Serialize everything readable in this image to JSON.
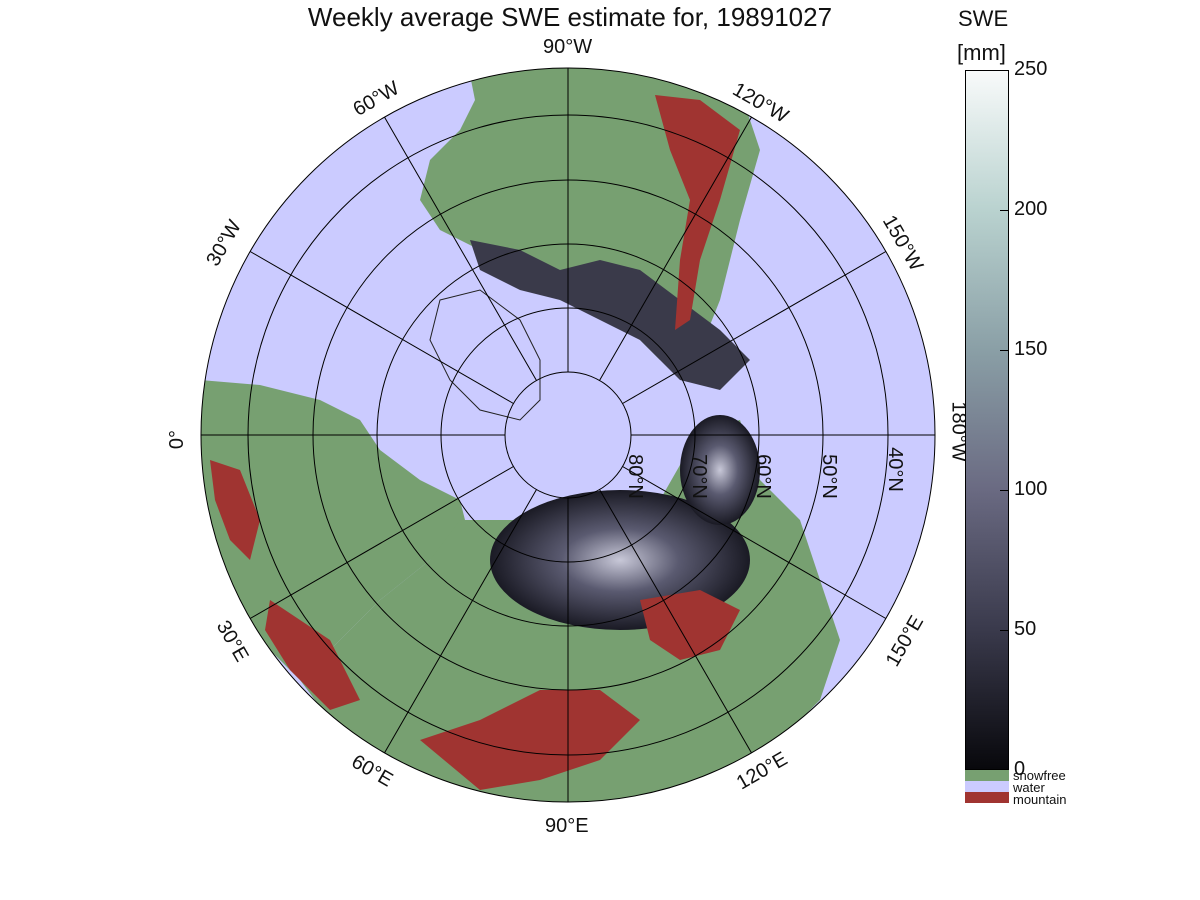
{
  "title": "Weekly average SWE estimate for, 19891027",
  "colorbar": {
    "label_line1": "SWE",
    "label_line2": "[mm]",
    "ticks": [
      "0",
      "50",
      "100",
      "150",
      "200",
      "250"
    ],
    "range": [
      0,
      250
    ],
    "categories": [
      {
        "label": "snowfree",
        "color": "#77a071"
      },
      {
        "label": "water",
        "color": "#cbcbff"
      },
      {
        "label": "mountain",
        "color": "#a03431"
      }
    ]
  },
  "map": {
    "projection": "north-polar-stereographic",
    "ocean_color": "#cbcbff",
    "land_color": "#77a071",
    "mountain_color": "#a03431",
    "snow_low_color": "#1a1a22",
    "snow_high_color": "#f5f8f8",
    "longitude_labels": [
      "90°W",
      "60°W",
      "120°W",
      "30°W",
      "150°W",
      "0°",
      "180°W",
      "30°E",
      "150°E",
      "60°E",
      "120°E",
      "90°E"
    ],
    "latitude_labels": [
      "80°N",
      "70°N",
      "60°N",
      "50°N",
      "40°N"
    ]
  }
}
